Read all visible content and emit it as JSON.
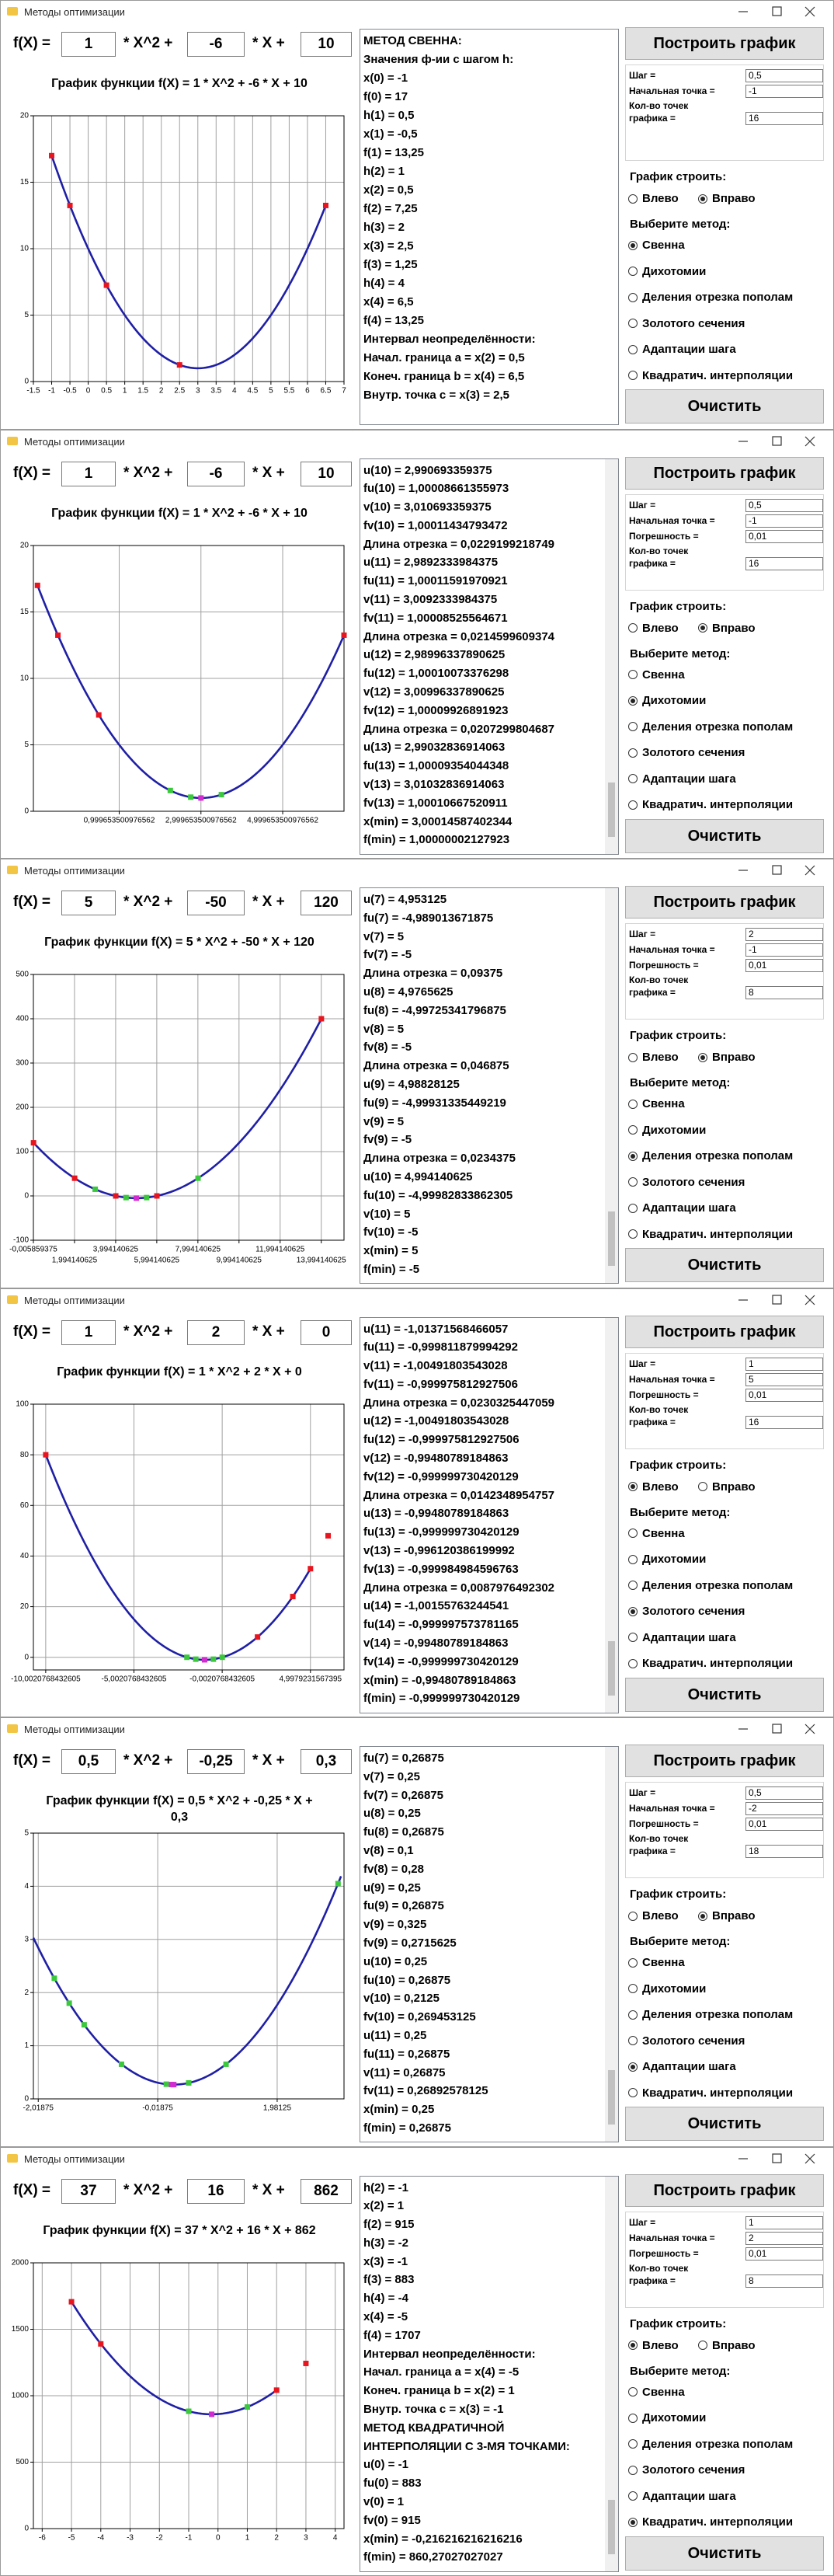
{
  "app": {
    "window_title": "Методы оптимизации",
    "f_label": "f(X) =",
    "x2_label": "* X^2 +",
    "x_label": "* X +",
    "build_button": "Построить график",
    "clear_button": "Очистить",
    "step_label": "Шаг =",
    "start_label": "Начальная точка =",
    "eps_label": "Погрешность =",
    "count_label": [
      "Кол-во точек",
      "графика ="
    ],
    "direction_label": "График строить:",
    "left": "Влево",
    "right": "Вправо",
    "method_label": "Выберите метод:",
    "methods": [
      "Свенна",
      "Дихотомии",
      "Деления отрезка пополам",
      "Золотого сечения",
      "Адаптации шага",
      "Квадратич. интерполяции"
    ]
  },
  "windows": [
    {
      "coefficients": [
        "1",
        "-6",
        "10"
      ],
      "chart": {
        "type": "line",
        "title": "График функции f(X) = 1 * X^2 + -6 * X + 10",
        "curve": {
          "color": "#1f1fa6",
          "coef": [
            1,
            -6,
            10
          ],
          "range": [
            -1,
            6.5
          ]
        },
        "markers": [
          {
            "color": "#e8141e",
            "x": [
              -1,
              -0.5,
              0.5,
              2.5,
              6.5
            ],
            "y": [
              17,
              13.25,
              7.25,
              1.25,
              13.25
            ]
          }
        ],
        "xlim": [
          -1.5,
          7
        ],
        "ylim": [
          0,
          20
        ],
        "xticks": [
          -1.5,
          -1,
          -0.5,
          0,
          0.5,
          1,
          1.5,
          2,
          2.5,
          3,
          3.5,
          4,
          4.5,
          5,
          5.5,
          6,
          6.5,
          7
        ],
        "yticks": [
          0,
          5,
          10,
          15,
          20
        ],
        "grid": true
      },
      "log": [
        "МЕТОД СВЕННА:",
        "Значения ф-ии с шагом h:",
        "x(0) = -1",
        "f(0) = 17",
        "h(1) = 0,5",
        "x(1) = -0,5",
        "f(1) = 13,25",
        "h(2) = 1",
        "x(2) = 0,5",
        "f(2) = 7,25",
        "h(3) = 2",
        "x(3) = 2,5",
        "f(3) = 1,25",
        "h(4) = 4",
        "x(4) = 6,5",
        "f(4) = 13,25",
        "Интервал неопределённости:",
        "Начал. граница a = x(2) = 0,5",
        "Конеч. граница b = x(4) = 6,5",
        "Внутр. точка c = x(3) = 2,5"
      ],
      "log_scrollbar": false,
      "params": {
        "step": "0,5",
        "start": "-1",
        "count": "16"
      },
      "direction": "right",
      "method": 0
    },
    {
      "coefficients": [
        "1",
        "-6",
        "10"
      ],
      "chart": {
        "type": "line",
        "title": "График функции f(X) = 1 * X^2 + -6 * X + 10",
        "curve": {
          "color": "#1f1fa6",
          "coef": [
            1,
            -6,
            10
          ],
          "range": [
            -1,
            6.5
          ]
        },
        "markers": [
          {
            "color": "#e8141e",
            "x": [
              -1,
              -0.5,
              0.5,
              6.5
            ],
            "y": [
              17,
              13.25,
              7.25,
              13.25
            ]
          },
          {
            "color": "#3cc83c",
            "x": [
              2.25,
              2.75,
              3.5
            ],
            "y": [
              1.5625,
              1.0625,
              1.25
            ]
          },
          {
            "color": "#d02cd0",
            "x": [
              3
            ],
            "y": [
              1
            ]
          }
        ],
        "xlim": [
          -1.1,
          6.5
        ],
        "ylim": [
          0,
          20
        ],
        "xticks": [
          {
            "value": 0.999653500976562,
            "label": "0,999653500976562"
          },
          {
            "value": 2.999653500976562,
            "label": "2,999653500976562"
          },
          {
            "value": 4.999653500976562,
            "label": "4,999653500976562"
          }
        ],
        "yticks": [
          0,
          5,
          10,
          15,
          20
        ],
        "grid": true
      },
      "log": [
        "u(10) = 2,990693359375",
        "fu(10) = 1,00008661355973",
        "v(10) = 3,010693359375",
        "fv(10) = 1,00011434793472",
        "Длина отрезка = 0,0229199218749",
        "u(11) = 2,9892333984375",
        "fu(11) = 1,00011591970921",
        "v(11) = 3,0092333984375",
        "fv(11) = 1,00008525564671",
        "Длина отрезка = 0,0214599609374",
        "u(12) = 2,98996337890625",
        "fu(12) = 1,00010073376298",
        "v(12) = 3,00996337890625",
        "fv(12) = 1,00009926891923",
        "Длина отрезка = 0,0207299804687",
        "u(13) = 2,99032836914063",
        "fu(13) = 1,00009354044348",
        "v(13) = 3,01032836914063",
        "fv(13) = 1,00010667520911",
        "x(min) = 3,00014587402344",
        "f(min) = 1,00000002127923"
      ],
      "log_scrollbar": true,
      "params": {
        "step": "0,5",
        "start": "-1",
        "eps": "0,01",
        "count": "16"
      },
      "direction": "right",
      "method": 1
    },
    {
      "coefficients": [
        "5",
        "-50",
        "120"
      ],
      "chart": {
        "type": "line",
        "title": "График функции f(X) = 5 * X^2 + -50 * X + 120",
        "curve": {
          "color": "#1f1fa6",
          "coef": [
            5,
            -50,
            120
          ],
          "range": [
            0,
            14
          ]
        },
        "markers": [
          {
            "color": "#e8141e",
            "x": [
              0,
              2,
              4,
              6,
              14
            ],
            "y": [
              120,
              40,
              0,
              0,
              400
            ]
          },
          {
            "color": "#3cc83c",
            "x": [
              3,
              4.5,
              5.5,
              8
            ],
            "y": [
              15,
              -3.75,
              -3.75,
              40
            ]
          },
          {
            "color": "#d02cd0",
            "x": [
              5
            ],
            "y": [
              -5
            ]
          }
        ],
        "xlim": [
          -0.006,
          15.1
        ],
        "ylim": [
          -100,
          500
        ],
        "xtick_stagger": true,
        "xticks": [
          {
            "value": -0.005859375,
            "label": "-0,005859375"
          },
          {
            "value": 1.994140625,
            "label": "1,994140625"
          },
          {
            "value": 3.994140625,
            "label": "3,994140625"
          },
          {
            "value": 5.994140625,
            "label": "5,994140625"
          },
          {
            "value": 7.994140625,
            "label": "7,994140625"
          },
          {
            "value": 9.994140625,
            "label": "9,994140625"
          },
          {
            "value": 11.994140625,
            "label": "11,994140625"
          },
          {
            "value": 13.994140625,
            "label": "13,994140625"
          }
        ],
        "yticks": [
          -100,
          0,
          100,
          200,
          300,
          400,
          500
        ],
        "grid": true
      },
      "log": [
        "u(7) = 4,953125",
        "fu(7) = -4,989013671875",
        "v(7) = 5",
        "fv(7) = -5",
        "Длина отрезка = 0,09375",
        "u(8) = 4,9765625",
        "fu(8) = -4,99725341796875",
        "v(8) = 5",
        "fv(8) = -5",
        "Длина отрезка = 0,046875",
        "u(9) = 4,98828125",
        "fu(9) = -4,99931335449219",
        "v(9) = 5",
        "fv(9) = -5",
        "Длина отрезка = 0,0234375",
        "u(10) = 4,994140625",
        "fu(10) = -4,99982833862305",
        "v(10) = 5",
        "fv(10) = -5",
        "x(min) = 5",
        "f(min) = -5"
      ],
      "log_scrollbar": true,
      "params": {
        "step": "2",
        "start": "-1",
        "eps": "0,01",
        "count": "8"
      },
      "direction": "right",
      "method": 2
    },
    {
      "coefficients": [
        "1",
        "2",
        "0"
      ],
      "chart": {
        "type": "line",
        "title": "График функции f(X) = 1 * X^2 + 2 * X + 0",
        "curve": {
          "color": "#1f1fa6",
          "coef": [
            1,
            2,
            0
          ],
          "range": [
            -10,
            5
          ]
        },
        "markers": [
          {
            "color": "#e8141e",
            "x": [
              -10,
              2,
              4,
              5,
              6
            ],
            "y": [
              80,
              8,
              24,
              35,
              48
            ]
          },
          {
            "color": "#3cc83c",
            "x": [
              -2,
              -1.5,
              -0.5,
              0
            ],
            "y": [
              0,
              -0.75,
              -0.75,
              0
            ]
          },
          {
            "color": "#d02cd0",
            "x": [
              -1
            ],
            "y": [
              -1
            ]
          }
        ],
        "xlim": [
          -10.7,
          6.9
        ],
        "ylim": [
          -5,
          100
        ],
        "xticks": [
          {
            "value": -10.0020768432605,
            "label": "-10,0020768432605"
          },
          {
            "value": -5.0020768432605,
            "label": "-5,0020768432605"
          },
          {
            "value": -0.0020768432605,
            "label": "-0,0020768432605"
          },
          {
            "value": 4.9979231567395,
            "label": "4,9979231567395"
          }
        ],
        "yticks": [
          0,
          20,
          40,
          60,
          80,
          100
        ],
        "grid": true
      },
      "log": [
        "u(11) = -1,01371568466057",
        "fu(11) = -0,999811879994292",
        "v(11) = -1,00491803543028",
        "fv(11) = -0,999975812927506",
        "Длина отрезка = 0,0230325447059",
        "u(12) = -1,00491803543028",
        "fu(12) = -0,999975812927506",
        "v(12) = -0,99480789184863",
        "fv(12) = -0,999999730420129",
        "Длина отрезка = 0,0142348954757",
        "u(13) = -0,99480789184863",
        "fu(13) = -0,999999730420129",
        "v(13) = -0,996120386199992",
        "fv(13) = -0,999984984596763",
        "Длина отрезка = 0,0087976492302",
        "u(14) = -1,00155763244541",
        "fu(14) = -0,999997573781165",
        "v(14) = -0,99480789184863",
        "fv(14) = -0,999999730420129",
        "x(min) = -0,99480789184863",
        "f(min) = -0,999999730420129"
      ],
      "log_scrollbar": true,
      "params": {
        "step": "1",
        "start": "5",
        "eps": "0,01",
        "count": "16"
      },
      "direction": "left",
      "method": 3
    },
    {
      "coefficients": [
        "0,5",
        "-0,25",
        "0,3"
      ],
      "chart": {
        "type": "line",
        "title": "График функции f(X) = 0,5 * X^2 + -0,25 * X + 0,3",
        "curve": {
          "color": "#1f1fa6",
          "coef": [
            0.5,
            -0.25,
            0.3
          ],
          "range": [
            -2.1,
            3.05
          ]
        },
        "markers": [
          {
            "color": "#3cc83c",
            "x": [
              -1.75,
              -1.5,
              -1.25,
              -0.625,
              0.125,
              0.5,
              1.125,
              3
            ],
            "y": [
              2.26875,
              1.8,
              1.39375,
              0.6516,
              0.2766,
              0.3,
              0.6516,
              4.05
            ]
          },
          {
            "color": "#d02cd0",
            "x": [
              0.2125,
              0.25
            ],
            "y": [
              0.2695,
              0.26875
            ]
          }
        ],
        "xlim": [
          -2.1,
          3.1
        ],
        "ylim": [
          0,
          5
        ],
        "xticks": [
          {
            "value": -2.01875,
            "label": "-2,01875"
          },
          {
            "value": -0.01875,
            "label": "-0,01875"
          },
          {
            "value": 1.98125,
            "label": "1,98125"
          }
        ],
        "yticks": [
          0,
          1,
          2,
          3,
          4,
          5
        ],
        "grid": true
      },
      "log": [
        "fu(7) = 0,26875",
        "v(7) = 0,25",
        "fv(7) = 0,26875",
        "u(8) = 0,25",
        "fu(8) = 0,26875",
        "v(8) = 0,1",
        "fv(8) = 0,28",
        "u(9) = 0,25",
        "fu(9) = 0,26875",
        "v(9) = 0,325",
        "fv(9) = 0,2715625",
        "u(10) = 0,25",
        "fu(10) = 0,26875",
        "v(10) = 0,2125",
        "fv(10) = 0,269453125",
        "u(11) = 0,25",
        "fu(11) = 0,26875",
        "v(11) = 0,26875",
        "fv(11) = 0,26892578125",
        "x(min) = 0,25",
        "f(min) = 0,26875"
      ],
      "log_scrollbar": true,
      "params": {
        "step": "0,5",
        "start": "-2",
        "eps": "0,01",
        "count": "18"
      },
      "direction": "right",
      "method": 4
    },
    {
      "coefficients": [
        "37",
        "16",
        "862"
      ],
      "chart": {
        "type": "line",
        "title": "График функции f(X) = 37 * X^2 + 16 * X + 862",
        "curve": {
          "color": "#1f1fa6",
          "coef": [
            37,
            16,
            862
          ],
          "range": [
            -5,
            2
          ]
        },
        "markers": [
          {
            "color": "#e8141e",
            "x": [
              -5,
              -4,
              2,
              3
            ],
            "y": [
              1707,
              1390,
              1042,
              1243
            ]
          },
          {
            "color": "#3cc83c",
            "x": [
              -1,
              1
            ],
            "y": [
              883,
              915
            ]
          },
          {
            "color": "#d02cd0",
            "x": [
              -0.216
            ],
            "y": [
              860.27
            ]
          }
        ],
        "xlim": [
          -6.3,
          4.3
        ],
        "ylim": [
          0,
          2000
        ],
        "xticks": [
          -6,
          -5,
          -4,
          -3,
          -2,
          -1,
          0,
          1,
          2,
          3,
          4
        ],
        "yticks": [
          0,
          500,
          1000,
          1500,
          2000
        ],
        "grid": true
      },
      "log": [
        "h(2) = -1",
        "x(2) = 1",
        "f(2) = 915",
        "h(3) = -2",
        "x(3) = -1",
        "f(3) = 883",
        "h(4) = -4",
        "x(4) = -5",
        "f(4) = 1707",
        "Интервал неопределённости:",
        "Начал. граница a = x(4) = -5",
        "Конеч. граница b = x(2) = 1",
        "Внутр. точка c = x(3) = -1",
        "МЕТОД КВАДРАТИЧНОЙ",
        "ИНТЕРПОЛЯЦИИ С 3-МЯ ТОЧКАМИ:",
        "u(0) = -1",
        "fu(0) = 883",
        "v(0) = 1",
        "fv(0) = 915",
        "x(min) = -0,216216216216216",
        "f(min) = 860,27027027027"
      ],
      "log_scrollbar": true,
      "params": {
        "step": "1",
        "start": "2",
        "eps": "0,01",
        "count": "8"
      },
      "direction": "left",
      "method": 5
    }
  ]
}
